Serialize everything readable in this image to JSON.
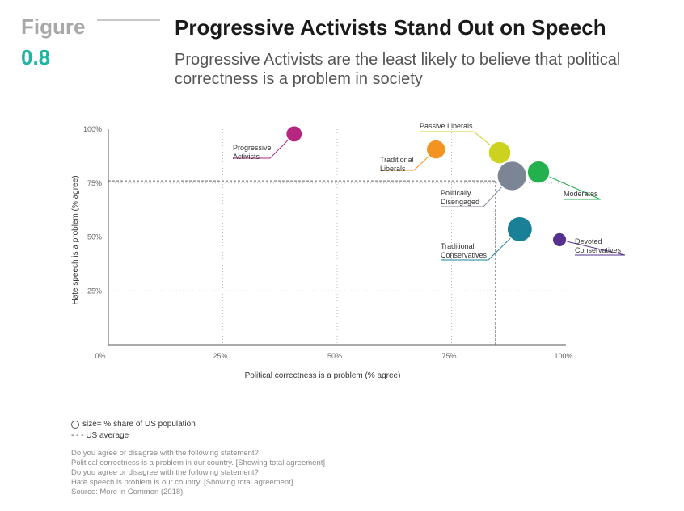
{
  "figure": {
    "label": "Figure",
    "number": "0.8",
    "accent": "#1fb5a2"
  },
  "title": "Progressive Activists Stand Out on Speech",
  "subtitle": "Progressive Activists are the least likely to believe that political correctness is a problem in society",
  "chart_data": {
    "type": "scatter",
    "title": "Progressive Activists Stand Out on Speech",
    "xlabel": "Political correctness is a problem (% agree)",
    "ylabel": "Hate speech is a problem (% agree)",
    "xlim": [
      0,
      100
    ],
    "ylim": [
      0,
      100
    ],
    "x_ticks": [
      "0%",
      "25%",
      "50%",
      "75%",
      "100%"
    ],
    "y_ticks": [
      "25%",
      "50%",
      "75%",
      "100%"
    ],
    "x_tick_values": [
      0,
      25,
      50,
      75,
      100
    ],
    "y_tick_values": [
      25,
      50,
      75,
      100
    ],
    "grid": "dotted",
    "size_encoding": "% share of US population",
    "us_average": {
      "x": 84.6,
      "y": 76
    },
    "points": [
      {
        "name": "Progressive Activists",
        "label_lines": [
          "Progressive",
          "Activists"
        ],
        "x": 40.6,
        "y": 97.8,
        "size": 8,
        "color": "#b5267f"
      },
      {
        "name": "Traditional Liberals",
        "label_lines": [
          "Traditional",
          "Liberals"
        ],
        "x": 71.6,
        "y": 90.6,
        "size": 11,
        "color": "#f39321"
      },
      {
        "name": "Passive Liberals",
        "label_lines": [
          "Passive Liberals"
        ],
        "x": 85.5,
        "y": 89.1,
        "size": 15,
        "color": "#cdd21e"
      },
      {
        "name": "Politically Disengaged",
        "label_lines": [
          "Politically",
          "Disengaged"
        ],
        "x": 88.2,
        "y": 78.3,
        "size": 26,
        "color": "#7b8594"
      },
      {
        "name": "Moderates",
        "label_lines": [
          "Moderates"
        ],
        "x": 94.0,
        "y": 80.1,
        "size": 15,
        "color": "#22b14c"
      },
      {
        "name": "Traditional Conservatives",
        "label_lines": [
          "Traditional",
          "Conservatives"
        ],
        "x": 89.9,
        "y": 53.6,
        "size": 19,
        "color": "#1a8097"
      },
      {
        "name": "Devoted Conservatives",
        "label_lines": [
          "Devoted",
          "Conservatives"
        ],
        "x": 98.6,
        "y": 48.7,
        "size": 6,
        "color": "#56308f"
      }
    ]
  },
  "legend": {
    "size_label": "size= % share of US population",
    "avg_label": "- - -  US average"
  },
  "notes": [
    "Do you agree or disagree with the following statement?",
    "Political correctness is a problem in our country. [Showing total agreement]",
    "Do you agree or disagree with the following statement?",
    "Hate speech is problem is our country. [Showing total agreement]",
    "Source: More in Common (2018)"
  ]
}
